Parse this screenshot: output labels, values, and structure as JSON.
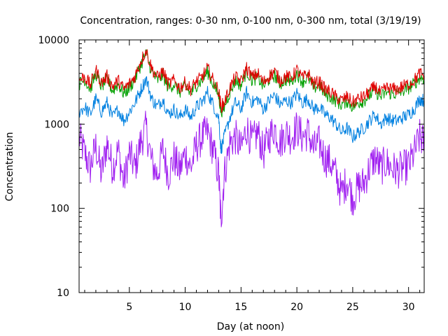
{
  "chart_data": {
    "type": "line",
    "title": "Concentration, ranges: 0-30 nm, 0-100 nm, 0-300 nm, total (3/19/19)",
    "xlabel": "Day (at noon)",
    "ylabel": "Concentration",
    "xlim": [
      0.5,
      31.4
    ],
    "ylim": [
      10,
      10000
    ],
    "yscale": "log",
    "grid": false,
    "legend": "none",
    "x_ticks": [
      5,
      10,
      15,
      20,
      25,
      30
    ],
    "y_ticks": [
      10,
      100,
      1000,
      10000
    ],
    "x_tick_labels": [
      "5",
      "10",
      "15",
      "20",
      "25",
      "30"
    ],
    "y_tick_labels": [
      "10",
      "100",
      "1000",
      "10000"
    ],
    "series": [
      {
        "color": "#a020f0",
        "points": [
          [
            0.5,
            700
          ],
          [
            1,
            450
          ],
          [
            1.5,
            300
          ],
          [
            2,
            550
          ],
          [
            2.5,
            250
          ],
          [
            3,
            600
          ],
          [
            3.5,
            300
          ],
          [
            4,
            500
          ],
          [
            4.5,
            200
          ],
          [
            5,
            450
          ],
          [
            5.5,
            300
          ],
          [
            6,
            600
          ],
          [
            6.5,
            900
          ],
          [
            7,
            350
          ],
          [
            7.5,
            250
          ],
          [
            8,
            500
          ],
          [
            8.5,
            250
          ],
          [
            9,
            400
          ],
          [
            9.5,
            280
          ],
          [
            10,
            450
          ],
          [
            10.5,
            300
          ],
          [
            11,
            550
          ],
          [
            11.5,
            700
          ],
          [
            12,
            800
          ],
          [
            12.5,
            500
          ],
          [
            13,
            250
          ],
          [
            13.2,
            70
          ],
          [
            13.5,
            250
          ],
          [
            14,
            600
          ],
          [
            14.5,
            700
          ],
          [
            15,
            500
          ],
          [
            15.5,
            900
          ],
          [
            16,
            600
          ],
          [
            16.5,
            800
          ],
          [
            17,
            450
          ],
          [
            17.5,
            700
          ],
          [
            18,
            900
          ],
          [
            18.5,
            600
          ],
          [
            19,
            800
          ],
          [
            19.5,
            700
          ],
          [
            20,
            900
          ],
          [
            20.5,
            700
          ],
          [
            21,
            800
          ],
          [
            21.5,
            500
          ],
          [
            22,
            600
          ],
          [
            22.5,
            400
          ],
          [
            23,
            350
          ],
          [
            23.5,
            250
          ],
          [
            24,
            150
          ],
          [
            24.5,
            220
          ],
          [
            25,
            130
          ],
          [
            25.5,
            180
          ],
          [
            26,
            200
          ],
          [
            26.5,
            300
          ],
          [
            27,
            400
          ],
          [
            27.5,
            300
          ],
          [
            28,
            350
          ],
          [
            28.5,
            300
          ],
          [
            29,
            280
          ],
          [
            29.5,
            300
          ],
          [
            30,
            320
          ],
          [
            30.5,
            450
          ],
          [
            31,
            700
          ],
          [
            31.4,
            600
          ]
        ]
      },
      {
        "color": "#0080e0",
        "points": [
          [
            0.5,
            1400
          ],
          [
            1,
            1600
          ],
          [
            1.5,
            1300
          ],
          [
            2,
            2000
          ],
          [
            2.5,
            1400
          ],
          [
            3,
            1800
          ],
          [
            3.5,
            1200
          ],
          [
            4,
            1500
          ],
          [
            4.5,
            1100
          ],
          [
            5,
            1400
          ],
          [
            5.5,
            1800
          ],
          [
            6,
            2500
          ],
          [
            6.5,
            3500
          ],
          [
            7,
            2000
          ],
          [
            7.5,
            1600
          ],
          [
            8,
            2000
          ],
          [
            8.5,
            1300
          ],
          [
            9,
            1500
          ],
          [
            9.5,
            1200
          ],
          [
            10,
            1500
          ],
          [
            10.5,
            1200
          ],
          [
            11,
            1600
          ],
          [
            11.5,
            1800
          ],
          [
            12,
            2400
          ],
          [
            12.5,
            1700
          ],
          [
            13,
            1200
          ],
          [
            13.2,
            500
          ],
          [
            13.5,
            700
          ],
          [
            14,
            1200
          ],
          [
            14.5,
            1800
          ],
          [
            15,
            1500
          ],
          [
            15.5,
            2400
          ],
          [
            16,
            1800
          ],
          [
            16.5,
            2000
          ],
          [
            17,
            1500
          ],
          [
            17.5,
            1900
          ],
          [
            18,
            2200
          ],
          [
            18.5,
            1700
          ],
          [
            19,
            1900
          ],
          [
            19.5,
            1800
          ],
          [
            20,
            2300
          ],
          [
            20.5,
            1800
          ],
          [
            21,
            2000
          ],
          [
            21.5,
            1500
          ],
          [
            22,
            1600
          ],
          [
            22.5,
            1300
          ],
          [
            23,
            1200
          ],
          [
            23.5,
            1000
          ],
          [
            24,
            800
          ],
          [
            24.5,
            900
          ],
          [
            25,
            700
          ],
          [
            25.5,
            800
          ],
          [
            26,
            900
          ],
          [
            26.5,
            1100
          ],
          [
            27,
            1300
          ],
          [
            27.5,
            1000
          ],
          [
            28,
            1200
          ],
          [
            28.5,
            1100
          ],
          [
            29,
            1100
          ],
          [
            29.5,
            1200
          ],
          [
            30,
            1300
          ],
          [
            30.5,
            1500
          ],
          [
            31,
            2000
          ],
          [
            31.4,
            1900
          ]
        ]
      },
      {
        "color": "#00a000",
        "points": [
          [
            0.5,
            3000
          ],
          [
            1,
            3400
          ],
          [
            1.5,
            2600
          ],
          [
            2,
            4000
          ],
          [
            2.5,
            2800
          ],
          [
            3,
            3400
          ],
          [
            3.5,
            2500
          ],
          [
            4,
            3000
          ],
          [
            4.5,
            2300
          ],
          [
            5,
            2700
          ],
          [
            5.5,
            3400
          ],
          [
            6,
            5000
          ],
          [
            6.5,
            6800
          ],
          [
            7,
            4200
          ],
          [
            7.5,
            3300
          ],
          [
            8,
            3800
          ],
          [
            8.5,
            2700
          ],
          [
            9,
            3000
          ],
          [
            9.5,
            2400
          ],
          [
            10,
            2800
          ],
          [
            10.5,
            2300
          ],
          [
            11,
            2900
          ],
          [
            11.5,
            3300
          ],
          [
            12,
            4200
          ],
          [
            12.5,
            3000
          ],
          [
            13,
            2200
          ],
          [
            13.2,
            1400
          ],
          [
            13.5,
            1600
          ],
          [
            14,
            2400
          ],
          [
            14.5,
            3300
          ],
          [
            15,
            2900
          ],
          [
            15.5,
            4300
          ],
          [
            16,
            3300
          ],
          [
            16.5,
            3600
          ],
          [
            17,
            2800
          ],
          [
            17.5,
            3400
          ],
          [
            18,
            3800
          ],
          [
            18.5,
            3000
          ],
          [
            19,
            3400
          ],
          [
            19.5,
            3200
          ],
          [
            20,
            4000
          ],
          [
            20.5,
            3200
          ],
          [
            21,
            3600
          ],
          [
            21.5,
            2700
          ],
          [
            22,
            2900
          ],
          [
            22.5,
            2300
          ],
          [
            23,
            2100
          ],
          [
            23.5,
            1900
          ],
          [
            24,
            1700
          ],
          [
            24.5,
            1900
          ],
          [
            25,
            1600
          ],
          [
            25.5,
            1800
          ],
          [
            26,
            1900
          ],
          [
            26.5,
            2200
          ],
          [
            27,
            2500
          ],
          [
            27.5,
            2100
          ],
          [
            28,
            2400
          ],
          [
            28.5,
            2300
          ],
          [
            29,
            2300
          ],
          [
            29.5,
            2500
          ],
          [
            30,
            2700
          ],
          [
            30.5,
            3000
          ],
          [
            31,
            3600
          ],
          [
            31.4,
            3500
          ]
        ]
      },
      {
        "color": "#e00000",
        "points": [
          [
            0.5,
            3300
          ],
          [
            1,
            3700
          ],
          [
            1.5,
            2900
          ],
          [
            2,
            4400
          ],
          [
            2.5,
            3100
          ],
          [
            3,
            3700
          ],
          [
            3.5,
            2800
          ],
          [
            4,
            3300
          ],
          [
            4.5,
            2600
          ],
          [
            5,
            3000
          ],
          [
            5.5,
            3700
          ],
          [
            6,
            5500
          ],
          [
            6.5,
            7500
          ],
          [
            7,
            4600
          ],
          [
            7.5,
            3600
          ],
          [
            8,
            4200
          ],
          [
            8.5,
            3000
          ],
          [
            9,
            3300
          ],
          [
            9.5,
            2700
          ],
          [
            10,
            3100
          ],
          [
            10.5,
            2600
          ],
          [
            11,
            3200
          ],
          [
            11.5,
            3600
          ],
          [
            12,
            4600
          ],
          [
            12.5,
            3300
          ],
          [
            13,
            2500
          ],
          [
            13.2,
            1600
          ],
          [
            13.5,
            1800
          ],
          [
            14,
            2700
          ],
          [
            14.5,
            3600
          ],
          [
            15,
            3200
          ],
          [
            15.5,
            4700
          ],
          [
            16,
            3600
          ],
          [
            16.5,
            4000
          ],
          [
            17,
            3100
          ],
          [
            17.5,
            3700
          ],
          [
            18,
            4200
          ],
          [
            18.5,
            3300
          ],
          [
            19,
            3700
          ],
          [
            19.5,
            3500
          ],
          [
            20,
            4400
          ],
          [
            20.5,
            3500
          ],
          [
            21,
            4000
          ],
          [
            21.5,
            3000
          ],
          [
            22,
            3200
          ],
          [
            22.5,
            2600
          ],
          [
            23,
            2400
          ],
          [
            23.5,
            2100
          ],
          [
            24,
            1900
          ],
          [
            24.5,
            2100
          ],
          [
            25,
            1800
          ],
          [
            25.5,
            2000
          ],
          [
            26,
            2100
          ],
          [
            26.5,
            2400
          ],
          [
            27,
            2800
          ],
          [
            27.5,
            2300
          ],
          [
            28,
            2700
          ],
          [
            28.5,
            2600
          ],
          [
            29,
            2600
          ],
          [
            29.5,
            2800
          ],
          [
            30,
            3000
          ],
          [
            30.5,
            3300
          ],
          [
            31,
            4000
          ],
          [
            31.4,
            3800
          ]
        ]
      }
    ]
  }
}
